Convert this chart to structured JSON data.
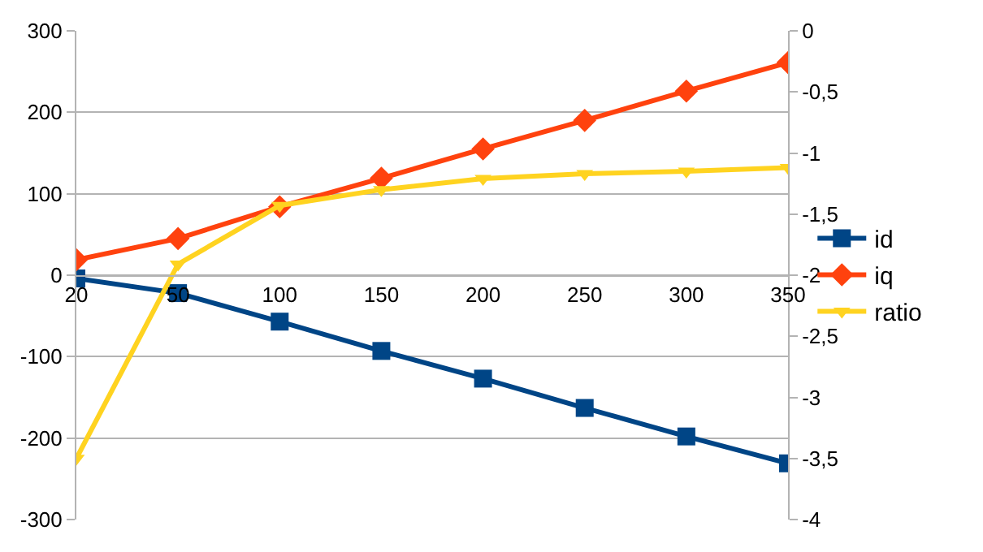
{
  "chart_data": {
    "type": "line",
    "categories": [
      "20",
      "50",
      "100",
      "150",
      "200",
      "250",
      "300",
      "350"
    ],
    "series": [
      {
        "name": "id",
        "color": "#004586",
        "marker": "square",
        "values": [
          -4,
          -22,
          -57,
          -93,
          -127,
          -163,
          -198,
          -231
        ]
      },
      {
        "name": "iq",
        "color": "#ff420e",
        "marker": "diamond",
        "values": [
          19,
          45,
          84,
          119,
          155,
          190,
          226,
          261
        ]
      },
      {
        "name": "ratio",
        "color": "#ffd320",
        "marker": "triangle",
        "axis": "y2",
        "values": [
          -3.5,
          -1.91,
          -1.43,
          -1.3,
          -1.21,
          -1.17,
          -1.15,
          -1.12
        ]
      }
    ],
    "ylim": [
      -300,
      300
    ],
    "yticks": [
      -300,
      -200,
      -100,
      0,
      100,
      200,
      300
    ],
    "y2lim": [
      -4,
      0
    ],
    "y2ticks": [
      {
        "value": -4,
        "label": "-4"
      },
      {
        "value": -3.5,
        "label": "-3,5"
      },
      {
        "value": -3,
        "label": "-3"
      },
      {
        "value": -2.5,
        "label": "-2,5"
      },
      {
        "value": -2,
        "label": "-2"
      },
      {
        "value": -1.5,
        "label": "-1,5"
      },
      {
        "value": -1,
        "label": "-1"
      },
      {
        "value": -0.5,
        "label": "-0,5"
      },
      {
        "value": 0,
        "label": "0"
      }
    ],
    "grid": "y",
    "legend": "right",
    "line_style": "solid"
  }
}
